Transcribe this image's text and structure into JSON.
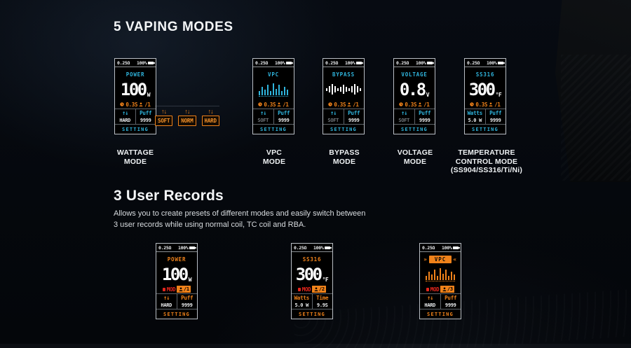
{
  "sections": {
    "vaping_title": "5 VAPING MODES",
    "records_title": "3 User Records",
    "records_desc_line1": "Allows you to create presets of different modes and easily switch between",
    "records_desc_line2": "3 user records while using normal coil, TC coil and RBA."
  },
  "colors": {
    "accent_cyan": "#2fb4dc",
    "accent_orange": "#f0821a",
    "record_red": "#e5261c",
    "screen_border": "#b9bec4",
    "background": "#05080d"
  },
  "puff_buttons": [
    {
      "label": "SOFT"
    },
    {
      "label": "NORM"
    },
    {
      "label": "HARD"
    }
  ],
  "vaping": {
    "screens": [
      {
        "resistance": "0.25Ω",
        "battery": "100%",
        "mode": "POWER",
        "value": "100",
        "unit": "W",
        "time": "0.3S",
        "count": "/1",
        "left_bottom": "HARD",
        "right_top": "Puff",
        "right_bottom": "9999",
        "footer": "SETTING",
        "label_line1": "WATTAGE",
        "label_line2": "MODE",
        "label_line3": ""
      },
      {
        "resistance": "0.25Ω",
        "battery": "100%",
        "mode": "VPC",
        "bars": [
          6,
          12,
          8,
          15,
          6,
          17,
          9,
          15,
          6,
          12,
          8
        ],
        "time": "0.3S",
        "count": "/1",
        "left_bottom": "SOFT",
        "right_top": "Puff",
        "right_bottom": "9999",
        "footer": "SETTING",
        "label_line1": "VPC",
        "label_line2": "MODE",
        "label_line3": ""
      },
      {
        "resistance": "0.25Ω",
        "battery": "100%",
        "mode": "BYPASS",
        "wave": [
          4,
          9,
          15,
          9,
          4,
          7,
          13,
          7,
          4,
          9,
          15,
          9,
          4
        ],
        "time": "0.3S",
        "count": "/1",
        "left_bottom": "SOFT",
        "right_top": "Puff",
        "right_bottom": "9999",
        "footer": "SETTING",
        "label_line1": "BYPASS",
        "label_line2": "MODE",
        "label_line3": ""
      },
      {
        "resistance": "0.25Ω",
        "battery": "100%",
        "mode": "VOLTAGE",
        "value": "0.8",
        "unit": "V",
        "time": "0.3S",
        "count": "/1",
        "left_bottom": "SOFT",
        "right_top": "Puff",
        "right_bottom": "9999",
        "footer": "SETTING",
        "label_line1": "VOLTAGE",
        "label_line2": "MODE",
        "label_line3": ""
      },
      {
        "resistance": "0.25Ω",
        "battery": "100%",
        "mode": "SS316",
        "value": "300",
        "unit": "°F",
        "time": "0.3S",
        "count": "/1",
        "left_top": "Watts",
        "left_bottom": "5.0 W",
        "right_top": "Puff",
        "right_bottom": "9999",
        "footer": "SETTING",
        "label_line1": "TEMPERATURE",
        "label_line2": "CONTROL MODE",
        "label_line3": "(SS904/SS316/Ti/Ni)"
      }
    ]
  },
  "records": {
    "screens": [
      {
        "resistance": "0.25Ω",
        "battery": "100%",
        "mode": "POWER",
        "value": "100",
        "unit": "W",
        "mod_label": "MOD",
        "count": "/1",
        "left_bottom": "HARD",
        "right_top": "Puff",
        "right_bottom": "9999",
        "footer": "SETTING"
      },
      {
        "resistance": "0.25Ω",
        "battery": "100%",
        "mode": "SS316",
        "value": "300",
        "unit": "°F",
        "mod_label": "MOD",
        "count": "/2",
        "left_top": "Watts",
        "left_bottom": "5.0 W",
        "right_top": "Time",
        "right_bottom": "9.9S",
        "footer": "SETTING"
      },
      {
        "resistance": "0.25Ω",
        "battery": "100%",
        "mode": "VPC",
        "bars": [
          6,
          12,
          8,
          15,
          6,
          17,
          9,
          15,
          6,
          12,
          8
        ],
        "mod_label": "MOD",
        "count": "/3",
        "left_bottom": "HARD",
        "right_top": "Puff",
        "right_bottom": "9999",
        "footer": "SETTING"
      }
    ]
  }
}
